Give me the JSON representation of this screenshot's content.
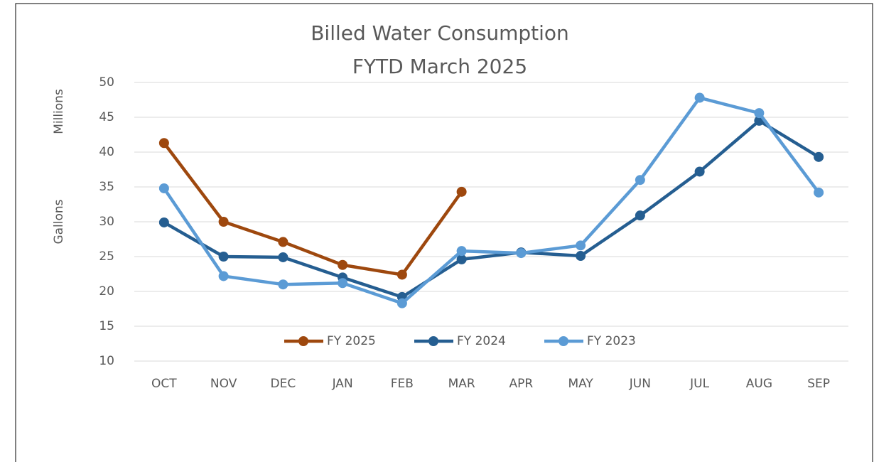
{
  "chart_data": {
    "type": "line",
    "title": [
      "Billed Water Consumption",
      "FYTD March 2025"
    ],
    "y_axis_label": "Gallons",
    "y_axis_unit": "Millions",
    "categories": [
      "OCT",
      "NOV",
      "DEC",
      "JAN",
      "FEB",
      "MAR",
      "APR",
      "MAY",
      "JUN",
      "JUL",
      "AUG",
      "SEP"
    ],
    "series": [
      {
        "name": "FY 2025",
        "color": "#9e480e",
        "values": [
          41.3,
          30.0,
          27.1,
          23.8,
          22.4,
          34.3,
          null,
          null,
          null,
          null,
          null,
          null
        ]
      },
      {
        "name": "FY 2024",
        "color": "#255e91",
        "values": [
          29.9,
          25.0,
          24.9,
          22.0,
          19.2,
          24.6,
          25.6,
          25.1,
          30.9,
          37.2,
          44.5,
          39.3
        ]
      },
      {
        "name": "FY 2023",
        "color": "#5b9bd5",
        "values": [
          34.8,
          22.2,
          21.0,
          21.2,
          18.3,
          25.8,
          25.5,
          26.6,
          36.0,
          47.8,
          45.6,
          34.2
        ]
      }
    ],
    "ylim": [
      10,
      50
    ],
    "yticks": [
      10,
      15,
      20,
      25,
      30,
      35,
      40,
      45,
      50
    ],
    "grid": true,
    "legend": "bottom"
  }
}
